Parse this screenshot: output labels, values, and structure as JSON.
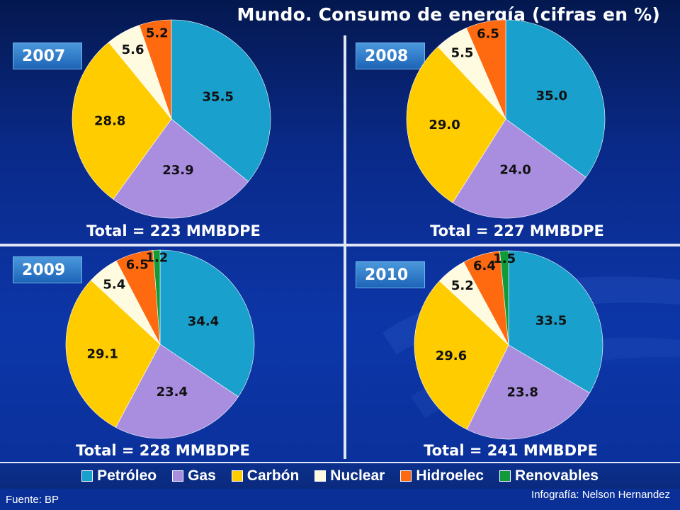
{
  "title": "Mundo. Consumo de energía (cifras en %)",
  "legend": [
    {
      "label": "Petróleo",
      "color": "#1aa0cc"
    },
    {
      "label": "Gas",
      "color": "#a98ee0"
    },
    {
      "label": "Carbón",
      "color": "#ffcc00"
    },
    {
      "label": "Nuclear",
      "color": "#fffbe0"
    },
    {
      "label": "Hidroelec",
      "color": "#ff6a10"
    },
    {
      "label": "Renovables",
      "color": "#119a3a"
    }
  ],
  "source": "Fuente: BP",
  "credit": "Infografía: Nelson Hernandez",
  "chart_data": [
    {
      "type": "pie",
      "year": "2007",
      "total_label": "Total = 223 MMBDPE",
      "categories": [
        "Petróleo",
        "Gas",
        "Carbón",
        "Nuclear",
        "Hidroelec",
        "Renovables"
      ],
      "values": [
        35.5,
        23.9,
        28.8,
        5.6,
        5.2,
        0
      ],
      "labels": [
        "35.5",
        "23.9",
        "28.8",
        "5.6",
        "5.2",
        ""
      ]
    },
    {
      "type": "pie",
      "year": "2008",
      "total_label": "Total = 227 MMBDPE",
      "categories": [
        "Petróleo",
        "Gas",
        "Carbón",
        "Nuclear",
        "Hidroelec",
        "Renovables"
      ],
      "values": [
        35.0,
        24.0,
        29.0,
        5.5,
        6.5,
        0
      ],
      "labels": [
        "35.0",
        "24.0",
        "29.0",
        "5.5",
        "6.5",
        ""
      ]
    },
    {
      "type": "pie",
      "year": "2009",
      "total_label": "Total = 228 MMBDPE",
      "categories": [
        "Petróleo",
        "Gas",
        "Carbón",
        "Nuclear",
        "Hidroelec",
        "Renovables"
      ],
      "values": [
        34.4,
        23.4,
        29.1,
        5.4,
        6.5,
        1.2
      ],
      "labels": [
        "34.4",
        "23.4",
        "29.1",
        "5.4",
        "6.5",
        "1.2"
      ]
    },
    {
      "type": "pie",
      "year": "2010",
      "total_label": "Total = 241 MMBDPE",
      "categories": [
        "Petróleo",
        "Gas",
        "Carbón",
        "Nuclear",
        "Hidroelec",
        "Renovables"
      ],
      "values": [
        33.5,
        23.8,
        29.6,
        5.2,
        6.4,
        1.5
      ],
      "labels": [
        "33.5",
        "23.8",
        "29.6",
        "5.2",
        "6.4",
        "1.5"
      ]
    }
  ]
}
